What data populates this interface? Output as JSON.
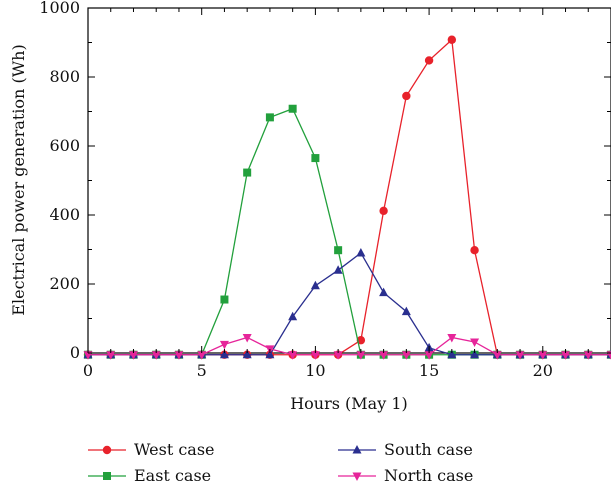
{
  "chart_data": {
    "type": "line",
    "title": "",
    "xlabel": "Hours (May 1)",
    "ylabel": "Electrical power generation (Wh)",
    "xlim": [
      0,
      23
    ],
    "ylim": [
      0,
      1000
    ],
    "xticks": [
      0,
      5,
      10,
      15,
      20
    ],
    "xtick_labels": [
      "0",
      "5",
      "10",
      "15",
      "20"
    ],
    "yticks": [
      0,
      200,
      400,
      600,
      800,
      1000
    ],
    "ytick_labels": [
      "0",
      "200",
      "400",
      "600",
      "800",
      "1000"
    ],
    "grid": false,
    "legend_position": "bottom",
    "x": [
      0,
      1,
      2,
      3,
      4,
      5,
      6,
      7,
      8,
      9,
      10,
      11,
      12,
      13,
      14,
      15,
      16,
      17,
      18,
      19,
      20,
      21,
      22,
      23
    ],
    "series": [
      {
        "name": "West case",
        "color": "#e8222b",
        "marker": "circle",
        "values": [
          -5,
          -5,
          -5,
          -5,
          -5,
          -5,
          -5,
          -5,
          -5,
          -5,
          -5,
          -5,
          37,
          412,
          745,
          848,
          908,
          298,
          -5,
          -5,
          -5,
          -5,
          -5,
          -5
        ]
      },
      {
        "name": "East case",
        "color": "#22a03c",
        "marker": "square",
        "values": [
          -5,
          -5,
          -5,
          -5,
          -5,
          -5,
          155,
          523,
          683,
          708,
          565,
          298,
          -5,
          -5,
          -5,
          -5,
          -5,
          -5,
          -5,
          -5,
          -5,
          -5,
          -5,
          -5
        ]
      },
      {
        "name": "South case",
        "color": "#2a2f8f",
        "marker": "triangle-up",
        "values": [
          -5,
          -5,
          -5,
          -5,
          -5,
          -5,
          -5,
          -5,
          -5,
          105,
          195,
          240,
          290,
          175,
          120,
          15,
          -5,
          -5,
          -5,
          -5,
          -5,
          -5,
          -5,
          -5
        ]
      },
      {
        "name": "North case",
        "color": "#e6259a",
        "marker": "triangle-down",
        "values": [
          -5,
          -5,
          -5,
          -5,
          -5,
          -5,
          25,
          45,
          12,
          -5,
          -5,
          -5,
          -5,
          -5,
          -5,
          -5,
          45,
          32,
          -5,
          -5,
          -5,
          -5,
          -5,
          -5
        ]
      }
    ]
  }
}
